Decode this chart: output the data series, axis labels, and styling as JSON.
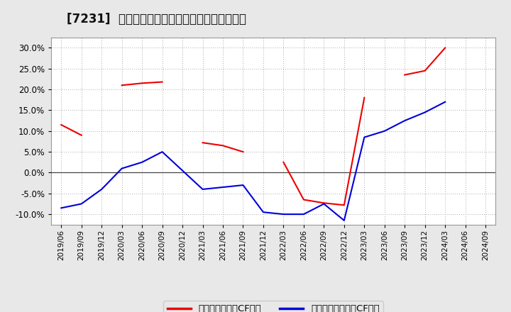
{
  "title": "[7231]  有利子負債キャッシュフロー比率の推移",
  "x_labels": [
    "2019/06",
    "2019/09",
    "2019/12",
    "2020/03",
    "2020/06",
    "2020/09",
    "2020/12",
    "2021/03",
    "2021/06",
    "2021/09",
    "2021/12",
    "2022/03",
    "2022/06",
    "2022/09",
    "2022/12",
    "2023/03",
    "2023/06",
    "2023/09",
    "2023/12",
    "2024/03",
    "2024/06",
    "2024/09"
  ],
  "red_values": [
    11.5,
    9.0,
    null,
    21.0,
    21.5,
    21.8,
    null,
    7.2,
    6.5,
    5.0,
    null,
    2.5,
    -6.5,
    -7.3,
    -7.8,
    18.0,
    null,
    23.5,
    24.5,
    30.0,
    null,
    null
  ],
  "blue_values": [
    -8.5,
    -7.5,
    -4.0,
    1.0,
    2.5,
    5.0,
    0.5,
    -4.0,
    -3.5,
    -3.0,
    -9.5,
    -10.0,
    -10.0,
    -7.5,
    -11.5,
    8.5,
    10.0,
    12.5,
    14.5,
    17.0,
    null,
    null
  ],
  "red_label": "有利子負債営業CF比率",
  "blue_label": "有利子負債フリーCF比率",
  "red_color": "#ee0000",
  "blue_color": "#0000dd",
  "ylim": [
    -12.5,
    32.5
  ],
  "yticks": [
    -10.0,
    -5.0,
    0.0,
    5.0,
    10.0,
    15.0,
    20.0,
    25.0,
    30.0
  ],
  "bg_color": "#e8e8e8",
  "plot_bg_color": "#ffffff",
  "grid_color": "#aaaaaa"
}
